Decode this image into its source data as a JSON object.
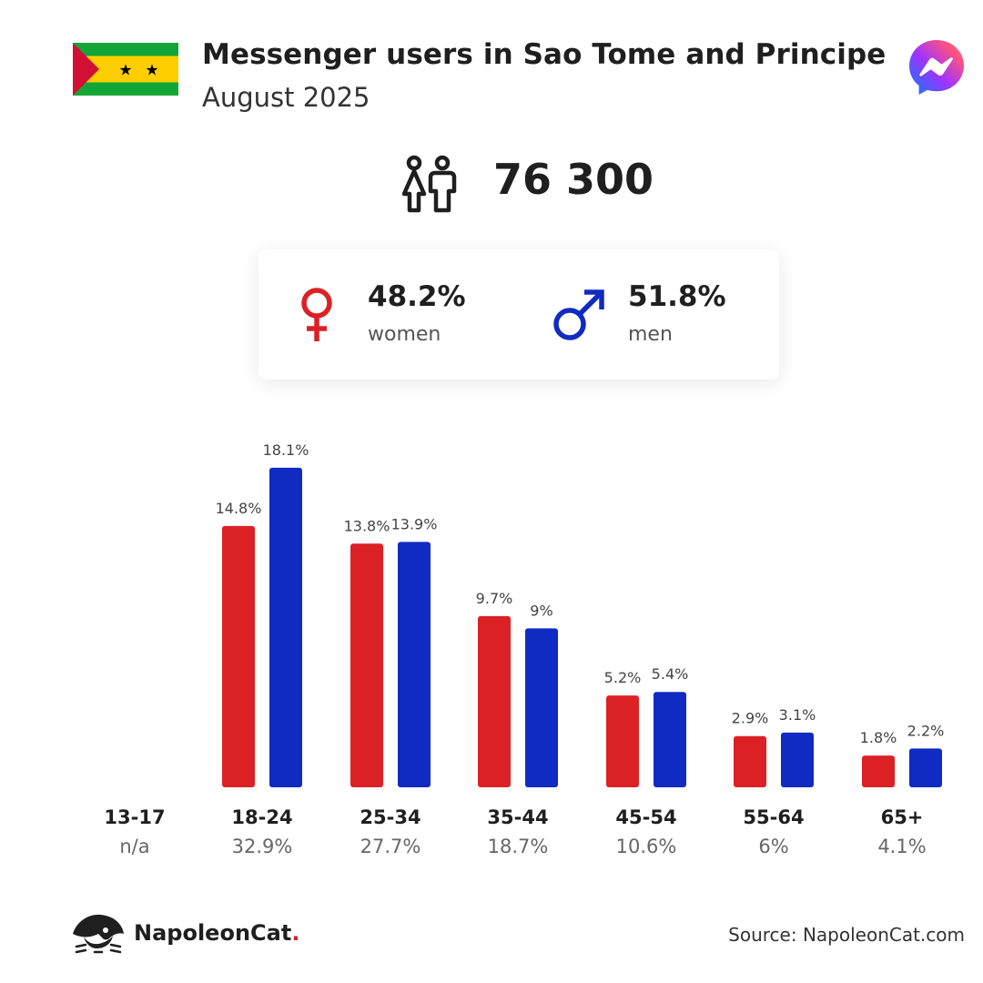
{
  "header": {
    "title": "Messenger users in Sao Tome and Principe",
    "subtitle": "August 2025",
    "country_flag": "sao-tome-and-principe-flag",
    "app_icon": "messenger-icon"
  },
  "total": {
    "value": "76 300",
    "icon": "people-icon"
  },
  "gender": {
    "women": {
      "value": "48.2%",
      "label": "women",
      "icon": "female-symbol-icon",
      "color": "#dc2126"
    },
    "men": {
      "value": "51.8%",
      "label": "men",
      "icon": "male-symbol-icon",
      "color": "#102bc2"
    }
  },
  "chart_data": {
    "type": "bar",
    "categories": [
      "13-17",
      "18-24",
      "25-34",
      "35-44",
      "45-54",
      "55-64",
      "65+"
    ],
    "category_shares": [
      "n/a",
      "32.9%",
      "27.7%",
      "18.7%",
      "10.6%",
      "6%",
      "4.1%"
    ],
    "series": [
      {
        "values": [
          null,
          14.8,
          13.8,
          9.7,
          5.2,
          2.9,
          1.8
        ],
        "labels": [
          "",
          "14.8%",
          "13.8%",
          "9.7%",
          "5.2%",
          "2.9%",
          "1.8%"
        ],
        "color": "#dc2126"
      },
      {
        "values": [
          null,
          18.1,
          13.9,
          9.0,
          5.4,
          3.1,
          2.2
        ],
        "labels": [
          "",
          "18.1%",
          "13.9%",
          "9%",
          "5.4%",
          "3.1%",
          "2.2%"
        ],
        "color": "#102bc2"
      }
    ]
  },
  "footer": {
    "brand": "NapoleonCat",
    "brand_dot": ".",
    "brand_icon": "napoleoncat-logo-icon",
    "source": "Source: NapoleonCat.com"
  }
}
